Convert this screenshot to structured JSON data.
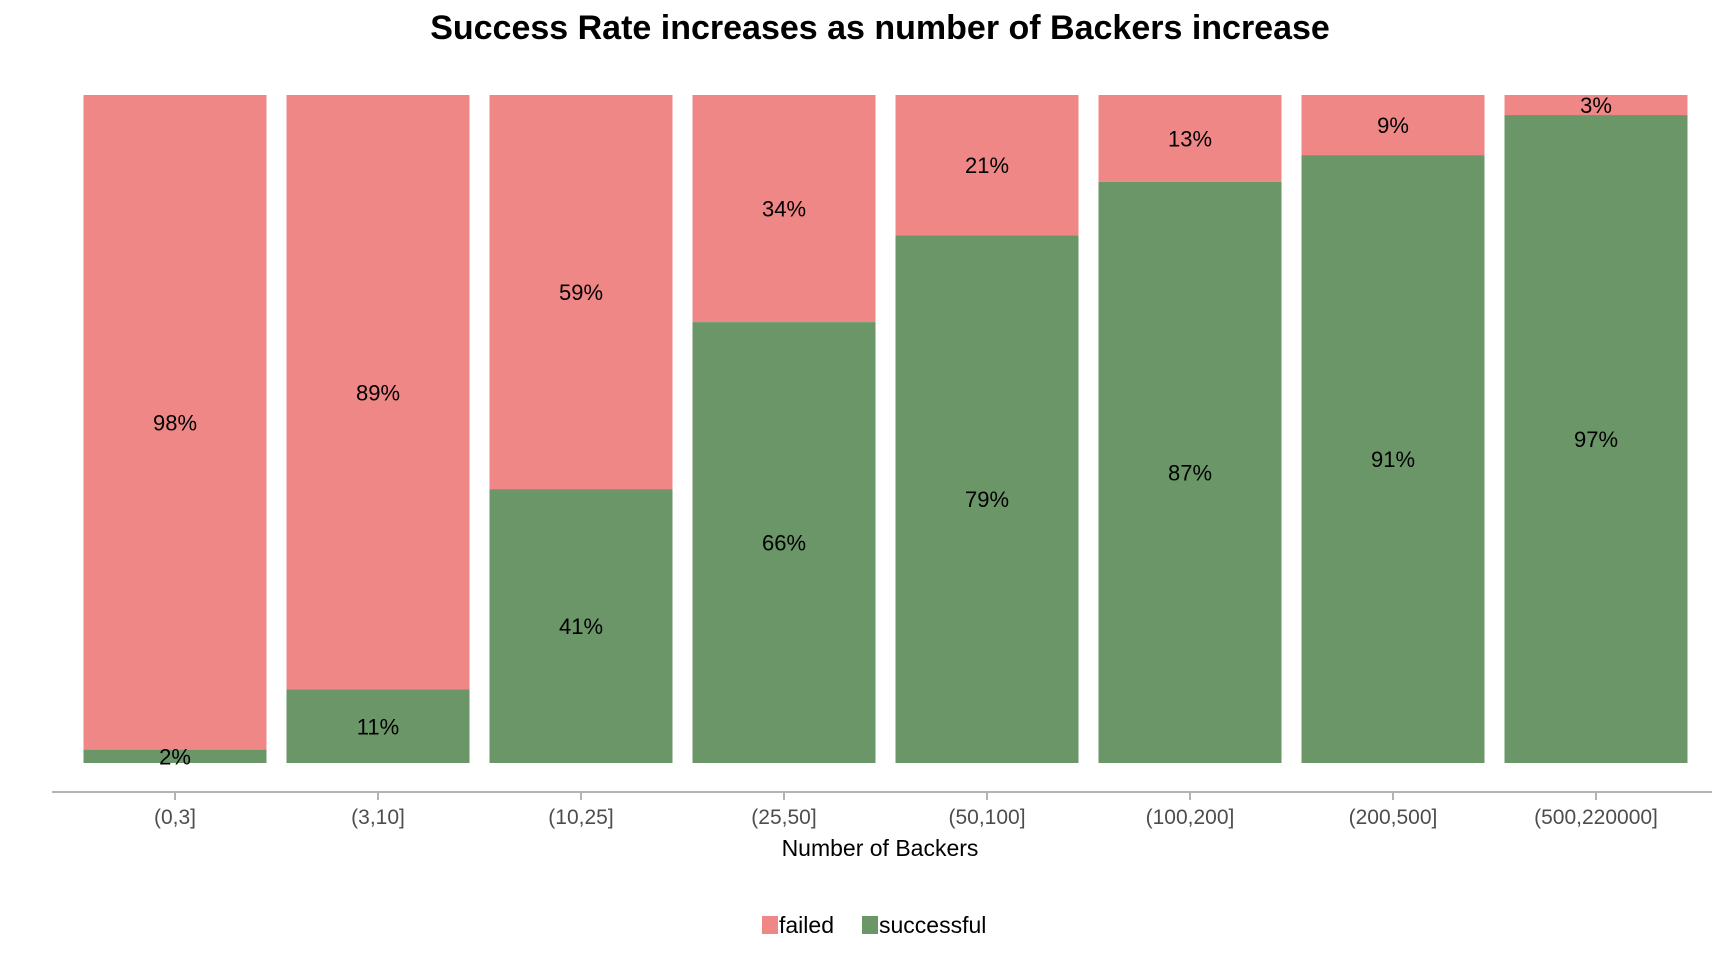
{
  "chart_data": {
    "type": "bar",
    "stacked": true,
    "title": "Success Rate increases as number of Backers increase",
    "xlabel": "Number of Backers",
    "ylabel": "",
    "ylim": [
      0,
      100
    ],
    "grid": false,
    "legend_position": "bottom",
    "categories": [
      "(0,3]",
      "(3,10]",
      "(10,25]",
      "(25,50]",
      "(50,100]",
      "(100,200]",
      "(200,500]",
      "(500,220000]"
    ],
    "series": [
      {
        "name": "failed",
        "color": "#ef8787",
        "values": [
          98,
          89,
          59,
          34,
          21,
          13,
          9,
          3
        ],
        "labels": [
          "98%",
          "89%",
          "59%",
          "34%",
          "21%",
          "13%",
          "9%",
          "3%"
        ]
      },
      {
        "name": "successful",
        "color": "#6b9668",
        "values": [
          2,
          11,
          41,
          66,
          79,
          87,
          91,
          97
        ],
        "labels": [
          "2%",
          "11%",
          "41%",
          "66%",
          "79%",
          "87%",
          "91%",
          "97%"
        ]
      }
    ]
  }
}
